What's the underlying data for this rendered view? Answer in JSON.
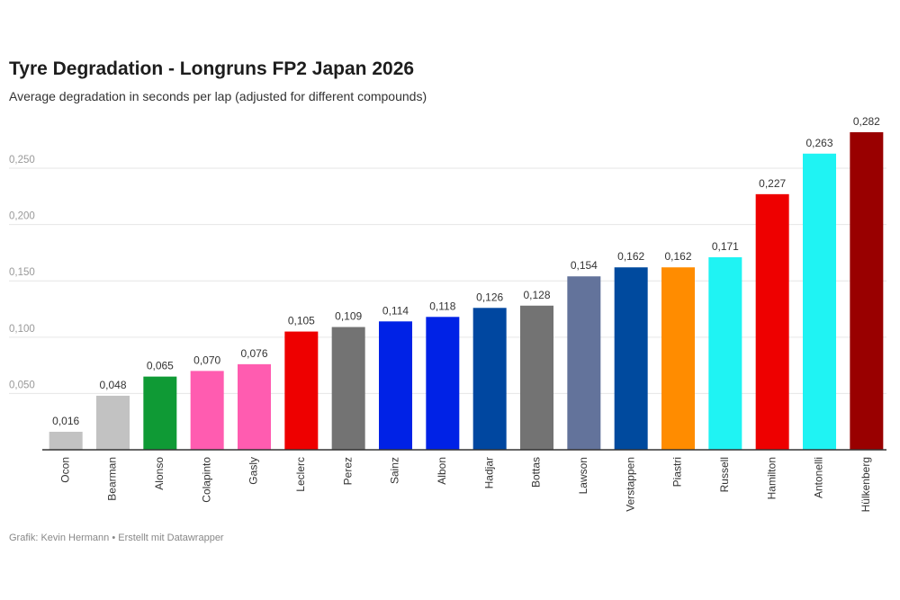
{
  "chart_data": {
    "type": "bar",
    "title": "Tyre Degradation - Longruns FP2 Japan 2026",
    "subtitle": "Average degradation in seconds per lap (adjusted for different compounds)",
    "footer": "Grafik: Kevin Hermann • Erstellt mit Datawrapper",
    "categories": [
      "Ocon",
      "Bearman",
      "Alonso",
      "Colapinto",
      "Gasly",
      "Leclerc",
      "Perez",
      "Sainz",
      "Albon",
      "Hadjar",
      "Bottas",
      "Lawson",
      "Verstappen",
      "Piastri",
      "Russell",
      "Hamilton",
      "Antonelli",
      "Hülkenberg"
    ],
    "values": [
      0.016,
      0.048,
      0.065,
      0.07,
      0.076,
      0.105,
      0.109,
      0.114,
      0.118,
      0.126,
      0.128,
      0.154,
      0.162,
      0.162,
      0.171,
      0.227,
      0.263,
      0.282
    ],
    "value_labels": [
      "0,016",
      "0,048",
      "0,065",
      "0,070",
      "0,076",
      "0,105",
      "0,109",
      "0,114",
      "0,118",
      "0,126",
      "0,128",
      "0,154",
      "0,162",
      "0,162",
      "0,171",
      "0,227",
      "0,263",
      "0,282"
    ],
    "colors": [
      "#c2c2c2",
      "#c2c2c2",
      "#0f9a35",
      "#ff5cb0",
      "#ff5cb0",
      "#ee0000",
      "#737373",
      "#0022e6",
      "#0022e6",
      "#0047a0",
      "#737373",
      "#63739b",
      "#004a9e",
      "#ff8c00",
      "#1ff3f3",
      "#ee0000",
      "#1ff3f3",
      "#990000"
    ],
    "ylim": [
      0,
      0.282
    ],
    "yticks": [
      {
        "value": 0.05,
        "label": "0,050"
      },
      {
        "value": 0.1,
        "label": "0,100"
      },
      {
        "value": 0.15,
        "label": "0,150"
      },
      {
        "value": 0.2,
        "label": "0,200"
      },
      {
        "value": 0.25,
        "label": "0,250"
      }
    ],
    "grid": true
  }
}
